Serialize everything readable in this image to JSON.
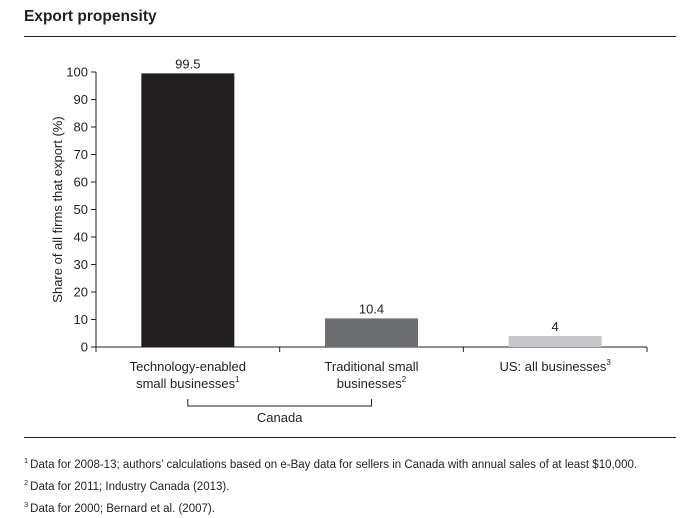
{
  "title": "Export propensity",
  "chart_data": {
    "type": "bar",
    "categories": [
      {
        "label_lines": [
          "Technology-enabled",
          "small businesses"
        ],
        "note": "1"
      },
      {
        "label_lines": [
          "Traditional small",
          "businesses"
        ],
        "note": "2"
      },
      {
        "label_lines": [
          "US: all businesses"
        ],
        "note": "3"
      }
    ],
    "values": [
      99.5,
      10.4,
      4
    ],
    "value_labels": [
      "99.5",
      "10.4",
      "4"
    ],
    "colors": [
      "#231f20",
      "#6d6e71",
      "#c7c8ca"
    ],
    "ylabel": "Share of all firms that export (%)",
    "xlabel": "",
    "ylim": [
      0,
      100
    ],
    "yticks": [
      0,
      10,
      20,
      30,
      40,
      50,
      60,
      70,
      80,
      90,
      100
    ],
    "grid": false,
    "group_bracket": {
      "label": "Canada",
      "spans": [
        0,
        1
      ]
    }
  },
  "footnotes": [
    {
      "mark": "1",
      "text": "Data for 2008-13; authors’ calculations based on e-Bay data for sellers in Canada with annual sales of at least $10,000."
    },
    {
      "mark": "2",
      "text": "Data for 2011; Industry Canada (2013)."
    },
    {
      "mark": "3",
      "text": "Data for 2000; Bernard et al. (2007)."
    }
  ]
}
